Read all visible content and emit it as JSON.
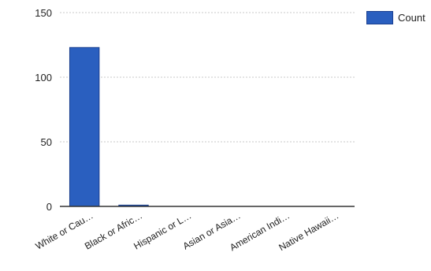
{
  "chart_data": {
    "type": "bar",
    "title": "",
    "xlabel": "",
    "ylabel": "",
    "categories": [
      "White or Cau…",
      "Black or Afric…",
      "Hispanic or L…",
      "Asian or Asia…",
      "American Indi…",
      "Native Hawaii…"
    ],
    "series": [
      {
        "name": "Count",
        "values": [
          123,
          1,
          0,
          0,
          0,
          0
        ]
      }
    ],
    "ylim": [
      0,
      150
    ],
    "yticks": [
      0,
      50,
      100,
      150
    ],
    "grid": true,
    "legend_position": "top-right",
    "colors": {
      "bar": "#2a5fbf",
      "bar_border": "#1a3f8f",
      "grid": "#c8c8c8",
      "axis": "#333333",
      "text": "#222222"
    }
  }
}
